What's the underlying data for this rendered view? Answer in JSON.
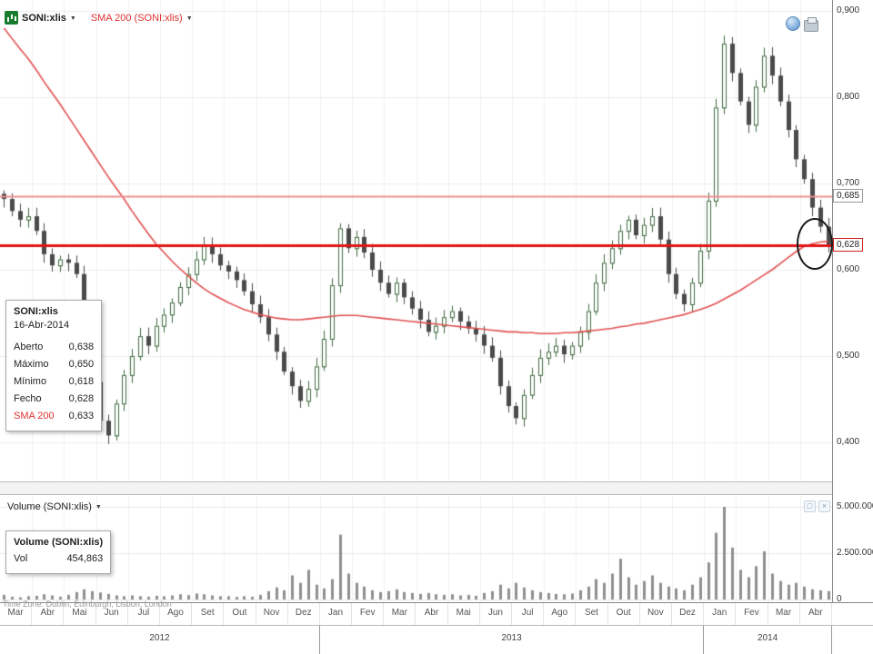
{
  "header": {
    "symbol_label": "SONI:xlis",
    "symbol_caret": "▼",
    "overlay_label": "SMA 200 (SONI:xlis)",
    "overlay_caret": "▼"
  },
  "icons": {
    "dropdown": "▼",
    "panel_maximize": "□",
    "panel_close": "×"
  },
  "tooltip_price": {
    "title": "SONI:xlis",
    "date": "16-Abr-2014",
    "rows": [
      {
        "label": "Aberto",
        "value": "0,638"
      },
      {
        "label": "Máximo",
        "value": "0,650"
      },
      {
        "label": "Mínimo",
        "value": "0,618"
      },
      {
        "label": "Fecho",
        "value": "0,628"
      },
      {
        "label": "SMA 200",
        "value": "0,633"
      }
    ]
  },
  "volume_panel": {
    "label": "Volume (SONI:xlis)",
    "caret": "▼",
    "tooltip": {
      "title": "Volume (SONI:xlis)",
      "row": {
        "label": "Vol",
        "value": "454,863"
      }
    }
  },
  "status_bar": {
    "time_zone": "Time Zone: Dublin, Edinburgh, Lisbon, London"
  },
  "levels": [
    {
      "label": "0,685",
      "value": 0.685
    },
    {
      "label": "0,628",
      "value": 0.628
    }
  ],
  "price_axis": {
    "ticks": [
      {
        "label": "0,900",
        "value": 0.9
      },
      {
        "label": "0,800",
        "value": 0.8
      },
      {
        "label": "0,700",
        "value": 0.7
      },
      {
        "label": "0,600",
        "value": 0.6
      },
      {
        "label": "0,500",
        "value": 0.5
      },
      {
        "label": "0,400",
        "value": 0.4
      }
    ]
  },
  "volume_axis": {
    "max": 5000000,
    "ticks": [
      {
        "label": "5.000.000",
        "value": 5000000
      },
      {
        "label": "2.500.000",
        "value": 2500000
      },
      {
        "label": "0",
        "value": 0
      }
    ]
  },
  "x_axis": {
    "years": [
      {
        "label": "2012",
        "start": 0,
        "end": 9
      },
      {
        "label": "2013",
        "start": 10,
        "end": 21
      },
      {
        "label": "2014",
        "start": 22,
        "end": 25
      }
    ]
  },
  "colors": {
    "sma_line": "#e14f4f",
    "level_685": "#f09090",
    "level_628": "#e01414",
    "up_candle": "#3f6b3f",
    "down_candle": "#4a4a4a",
    "volume_bar": "#8f8f8f",
    "grid": "#ececec"
  },
  "chart_data": {
    "type": "candlestick+volume",
    "symbol": "SONI:xlis",
    "overlay": "SMA 200",
    "y_range": [
      0.4,
      0.9
    ],
    "volume_range": [
      0,
      5000000
    ],
    "x_unit": "weekly (4 points per month), Mar 2012 - Abr 2014",
    "months": [
      "Mar",
      "Abr",
      "Mai",
      "Jun",
      "Jul",
      "Ago",
      "Set",
      "Out",
      "Nov",
      "Dez",
      "Jan",
      "Fev",
      "Mar",
      "Abr",
      "Mai",
      "Jun",
      "Jul",
      "Ago",
      "Set",
      "Out",
      "Nov",
      "Dez",
      "Jan",
      "Fev",
      "Mar",
      "Abr"
    ],
    "close": [
      0.682,
      0.668,
      0.658,
      0.662,
      0.645,
      0.618,
      0.605,
      0.612,
      0.608,
      0.595,
      0.545,
      0.47,
      0.425,
      0.408,
      0.445,
      0.478,
      0.5,
      0.523,
      0.512,
      0.535,
      0.548,
      0.562,
      0.58,
      0.595,
      0.612,
      0.628,
      0.618,
      0.605,
      0.598,
      0.588,
      0.575,
      0.56,
      0.545,
      0.525,
      0.505,
      0.482,
      0.465,
      0.448,
      0.462,
      0.488,
      0.52,
      0.582,
      0.648,
      0.625,
      0.638,
      0.62,
      0.6,
      0.585,
      0.572,
      0.585,
      0.568,
      0.555,
      0.542,
      0.528,
      0.535,
      0.545,
      0.552,
      0.54,
      0.532,
      0.525,
      0.512,
      0.498,
      0.465,
      0.442,
      0.428,
      0.455,
      0.478,
      0.498,
      0.505,
      0.512,
      0.502,
      0.512,
      0.528,
      0.552,
      0.585,
      0.608,
      0.625,
      0.645,
      0.658,
      0.64,
      0.652,
      0.662,
      0.635,
      0.595,
      0.572,
      0.56,
      0.585,
      0.622,
      0.68,
      0.788,
      0.862,
      0.828,
      0.795,
      0.768,
      0.812,
      0.848,
      0.825,
      0.795,
      0.762,
      0.728,
      0.705,
      0.672,
      0.65,
      0.628
    ],
    "sma200": [
      0.88,
      0.868,
      0.856,
      0.845,
      0.832,
      0.818,
      0.805,
      0.792,
      0.778,
      0.764,
      0.75,
      0.736,
      0.722,
      0.708,
      0.695,
      0.682,
      0.668,
      0.655,
      0.642,
      0.63,
      0.62,
      0.61,
      0.601,
      0.593,
      0.585,
      0.578,
      0.572,
      0.567,
      0.562,
      0.558,
      0.554,
      0.551,
      0.548,
      0.546,
      0.544,
      0.543,
      0.542,
      0.542,
      0.543,
      0.544,
      0.545,
      0.546,
      0.547,
      0.547,
      0.547,
      0.546,
      0.545,
      0.544,
      0.543,
      0.542,
      0.541,
      0.54,
      0.539,
      0.538,
      0.537,
      0.536,
      0.535,
      0.534,
      0.533,
      0.532,
      0.531,
      0.53,
      0.529,
      0.528,
      0.528,
      0.527,
      0.527,
      0.526,
      0.526,
      0.526,
      0.527,
      0.527,
      0.528,
      0.529,
      0.53,
      0.531,
      0.532,
      0.534,
      0.535,
      0.537,
      0.538,
      0.54,
      0.542,
      0.544,
      0.546,
      0.548,
      0.551,
      0.554,
      0.557,
      0.561,
      0.566,
      0.571,
      0.576,
      0.582,
      0.588,
      0.594,
      0.6,
      0.607,
      0.614,
      0.621,
      0.627,
      0.63,
      0.632,
      0.633
    ],
    "volume": [
      250000,
      150000,
      120000,
      180000,
      200000,
      280000,
      220000,
      150000,
      250000,
      400000,
      550000,
      450000,
      380000,
      300000,
      220000,
      180000,
      220000,
      180000,
      150000,
      200000,
      180000,
      220000,
      280000,
      240000,
      320000,
      280000,
      220000,
      180000,
      180000,
      140000,
      180000,
      150000,
      250000,
      450000,
      650000,
      500000,
      1300000,
      900000,
      1600000,
      800000,
      600000,
      1100000,
      3500000,
      1400000,
      900000,
      700000,
      500000,
      400000,
      450000,
      550000,
      400000,
      350000,
      300000,
      350000,
      280000,
      250000,
      280000,
      220000,
      250000,
      200000,
      350000,
      450000,
      800000,
      600000,
      900000,
      650000,
      500000,
      400000,
      350000,
      300000,
      280000,
      320000,
      500000,
      700000,
      1100000,
      900000,
      1400000,
      2200000,
      1200000,
      800000,
      1000000,
      1300000,
      900000,
      700000,
      600000,
      500000,
      800000,
      1200000,
      2000000,
      3600000,
      5000000,
      2800000,
      1600000,
      1200000,
      1800000,
      2600000,
      1400000,
      1000000,
      800000,
      900000,
      700000,
      550000,
      500000,
      454863
    ],
    "annotations": [
      {
        "type": "horizontal_line",
        "price": 0.685,
        "label": "0,685"
      },
      {
        "type": "horizontal_line",
        "price": 0.628,
        "label": "0,628"
      },
      {
        "type": "ellipse",
        "price": 0.628,
        "x_month": "Abr 2014"
      }
    ]
  }
}
